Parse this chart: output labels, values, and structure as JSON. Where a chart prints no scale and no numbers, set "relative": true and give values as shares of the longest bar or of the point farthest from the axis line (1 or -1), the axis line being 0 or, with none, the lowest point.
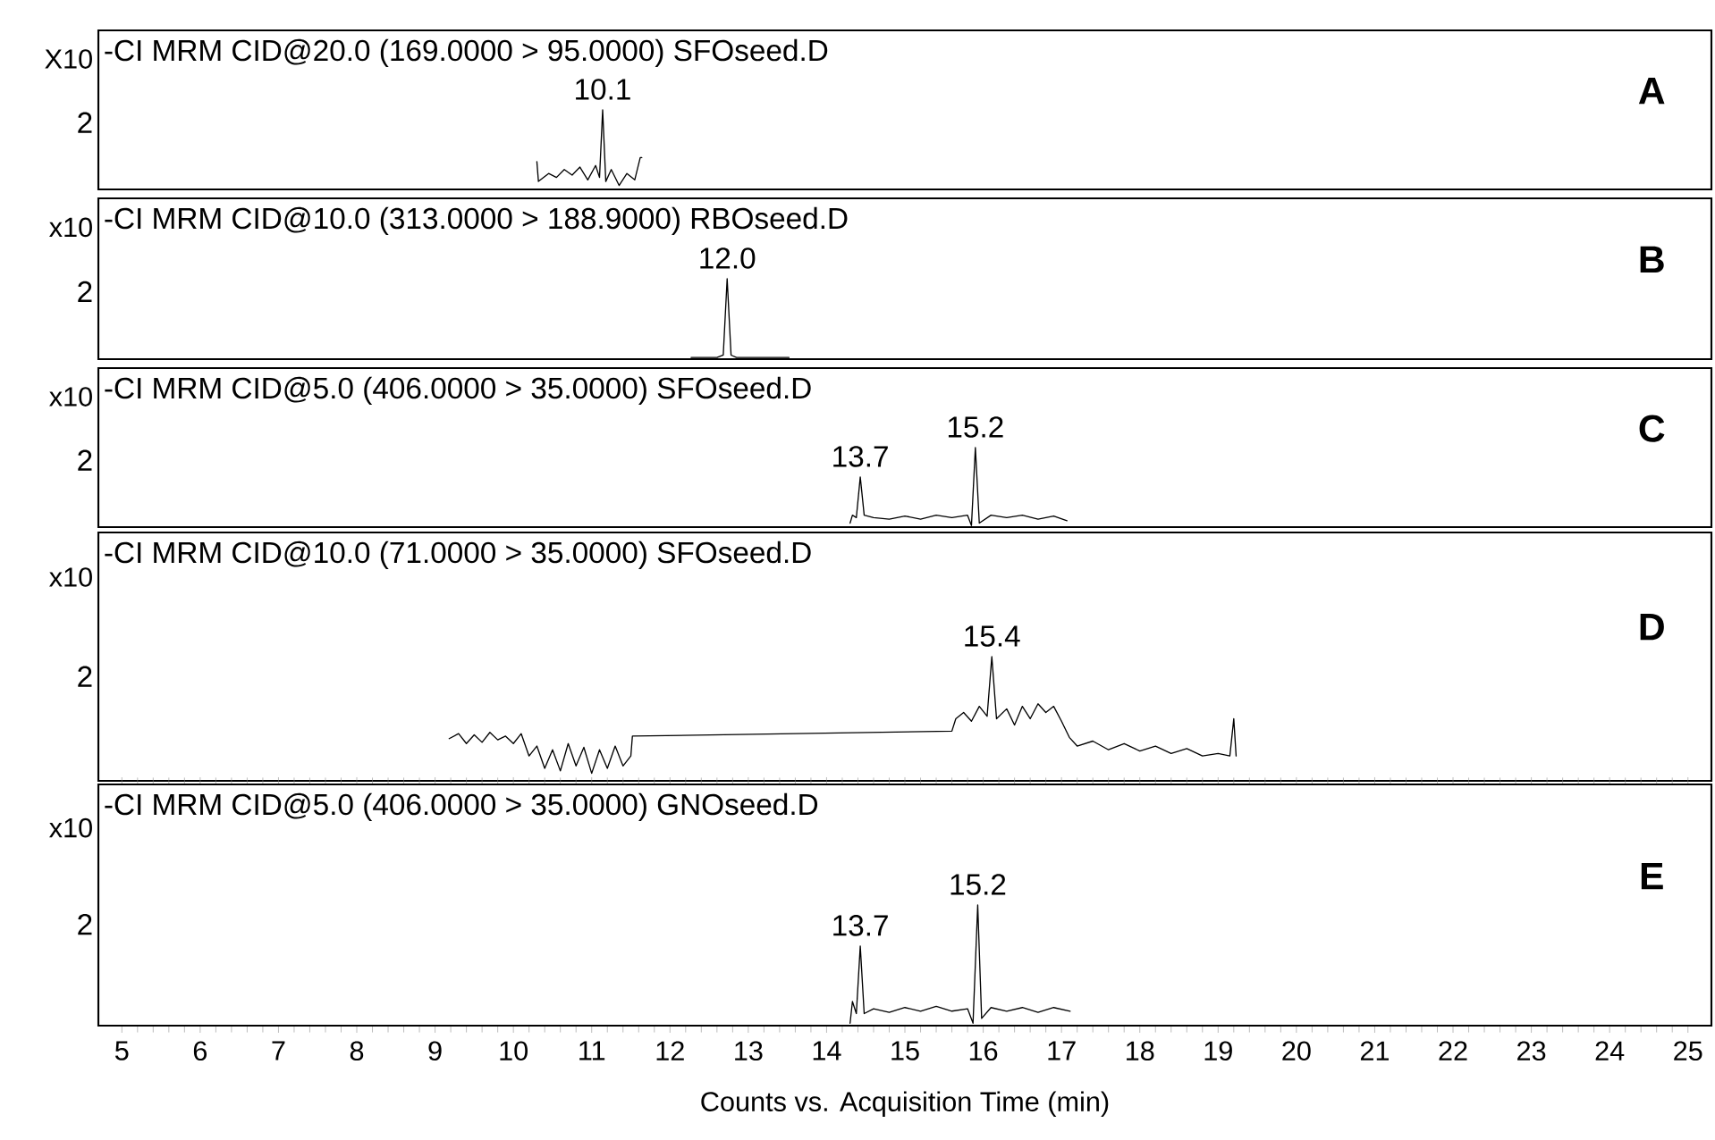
{
  "chart_data": [
    {
      "type": "line",
      "title": "-CI MRM CID@20.0 (169.0000 > 95.0000) SFOseed.D",
      "ylabel": "X10",
      "relative": true,
      "tick_labels": false,
      "xlim": [
        4.7,
        25.3
      ],
      "color": "#000000",
      "annotations": [
        "2",
        "A",
        {
          "text": "10.1",
          "x": 11.14,
          "y": 1.0
        }
      ],
      "x": [
        10.3,
        10.32,
        10.45,
        10.55,
        10.65,
        10.75,
        10.85,
        10.95,
        11.05,
        11.1,
        11.14,
        11.18,
        11.25,
        11.35,
        11.45,
        11.55,
        11.62,
        11.64
      ],
      "values": [
        0.35,
        0.1,
        0.2,
        0.15,
        0.25,
        0.18,
        0.28,
        0.12,
        0.3,
        0.15,
        1.0,
        0.1,
        0.25,
        0.05,
        0.2,
        0.12,
        0.4,
        0.4
      ]
    },
    {
      "type": "line",
      "title": "-CI MRM CID@10.0 (313.0000 > 188.9000) RBOseed.D",
      "ylabel": "x10",
      "relative": true,
      "tick_labels": false,
      "xlim": [
        4.7,
        25.3
      ],
      "color": "#000000",
      "annotations": [
        "2",
        "B",
        {
          "text": "12.0",
          "x": 12.73,
          "y": 1.0
        }
      ],
      "x": [
        12.27,
        12.6,
        12.68,
        12.73,
        12.78,
        12.85,
        13.52
      ],
      "values": [
        0.02,
        0.02,
        0.05,
        1.0,
        0.05,
        0.02,
        0.02
      ]
    },
    {
      "type": "line",
      "title": "-CI MRM CID@5.0 (406.0000 > 35.0000) SFOseed.D",
      "ylabel": "x10",
      "relative": true,
      "tick_labels": false,
      "xlim": [
        4.7,
        25.3
      ],
      "color": "#000000",
      "annotations": [
        "2",
        "C",
        {
          "text": "13.7",
          "x": 14.43,
          "y": 0.63
        },
        {
          "text": "15.2",
          "x": 15.9,
          "y": 1.0
        }
      ],
      "x": [
        14.3,
        14.33,
        14.38,
        14.43,
        14.48,
        14.6,
        14.8,
        15.0,
        15.2,
        15.4,
        15.6,
        15.8,
        15.85,
        15.9,
        15.95,
        16.1,
        16.3,
        16.5,
        16.7,
        16.9,
        17.07
      ],
      "values": [
        0.05,
        0.15,
        0.12,
        0.63,
        0.15,
        0.12,
        0.1,
        0.14,
        0.1,
        0.15,
        0.12,
        0.15,
        0.02,
        1.0,
        0.05,
        0.15,
        0.12,
        0.15,
        0.1,
        0.14,
        0.08
      ]
    },
    {
      "type": "line",
      "title": "-CI MRM CID@10.0 (71.0000 > 35.0000) SFOseed.D",
      "ylabel": "x10",
      "relative": true,
      "tick_labels": false,
      "xlim": [
        4.7,
        25.3
      ],
      "color": "#000000",
      "annotations": [
        "2",
        "D",
        {
          "text": "15.4",
          "x": 16.11,
          "y": 1.0
        }
      ],
      "x": [
        9.18,
        9.3,
        9.4,
        9.5,
        9.6,
        9.7,
        9.8,
        9.9,
        10.0,
        10.1,
        10.2,
        10.3,
        10.4,
        10.5,
        10.6,
        10.7,
        10.8,
        10.9,
        11.0,
        11.1,
        11.2,
        11.3,
        11.4,
        11.5,
        11.52,
        15.6,
        15.65,
        15.75,
        15.85,
        15.95,
        16.05,
        16.11,
        16.17,
        16.3,
        16.4,
        16.5,
        16.6,
        16.7,
        16.8,
        16.9,
        17.0,
        17.1,
        17.2,
        17.4,
        17.6,
        17.8,
        18.0,
        18.2,
        18.4,
        18.6,
        18.8,
        19.0,
        19.15,
        19.2,
        19.23
      ],
      "values": [
        0.34,
        0.38,
        0.3,
        0.37,
        0.31,
        0.39,
        0.33,
        0.36,
        0.3,
        0.38,
        0.2,
        0.28,
        0.1,
        0.25,
        0.08,
        0.3,
        0.12,
        0.27,
        0.06,
        0.25,
        0.1,
        0.28,
        0.12,
        0.2,
        0.36,
        0.4,
        0.5,
        0.55,
        0.48,
        0.6,
        0.52,
        1.0,
        0.5,
        0.58,
        0.45,
        0.6,
        0.5,
        0.62,
        0.55,
        0.6,
        0.48,
        0.35,
        0.28,
        0.32,
        0.25,
        0.3,
        0.24,
        0.28,
        0.22,
        0.26,
        0.2,
        0.22,
        0.2,
        0.5,
        0.2
      ]
    },
    {
      "type": "line",
      "title": "-CI MRM CID@5.0 (406.0000 > 35.0000) GNOseed.D",
      "ylabel": "x10",
      "xlabel": "Counts vs. Acquisition Time (min)",
      "relative": true,
      "tick_labels": "x",
      "xlim": [
        4.7,
        25.3
      ],
      "xticks": [
        5,
        6,
        7,
        8,
        9,
        10,
        11,
        12,
        13,
        14,
        15,
        16,
        17,
        18,
        19,
        20,
        21,
        22,
        23,
        24,
        25
      ],
      "color": "#000000",
      "annotations": [
        "2",
        "E",
        {
          "text": "13.7",
          "x": 14.43,
          "y": 0.66
        },
        {
          "text": "15.2",
          "x": 15.93,
          "y": 1.0
        }
      ],
      "x": [
        14.3,
        14.33,
        14.38,
        14.43,
        14.48,
        14.6,
        14.8,
        15.0,
        15.2,
        15.4,
        15.6,
        15.8,
        15.87,
        15.93,
        15.98,
        16.1,
        16.3,
        16.5,
        16.7,
        16.9,
        17.11
      ],
      "values": [
        0.02,
        0.2,
        0.1,
        0.66,
        0.1,
        0.14,
        0.11,
        0.15,
        0.12,
        0.16,
        0.12,
        0.14,
        0.02,
        1.0,
        0.06,
        0.15,
        0.12,
        0.15,
        0.11,
        0.15,
        0.12
      ]
    }
  ]
}
